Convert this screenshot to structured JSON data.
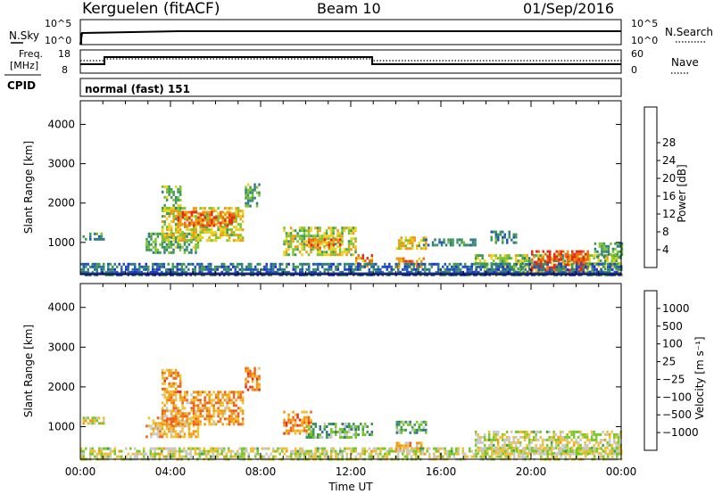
{
  "header": {
    "station": "Kerguelen (fitACF)",
    "beam": "Beam 10",
    "date": "01/Sep/2016"
  },
  "summary_panels": {
    "nsky_label": "N.Sky",
    "nsky_ticks": [
      "10^5",
      "10^0"
    ],
    "nsearch_label": "N.Search",
    "nsearch_ticks": [
      "10^5",
      "10^0"
    ],
    "freq_label_1": "Freq.",
    "freq_label_2": "[MHz]",
    "freq_ticks": [
      "18",
      "8"
    ],
    "nave_label": "Nave",
    "nave_ticks": [
      "60",
      "0"
    ],
    "cpid_label": "CPID",
    "mode_label": "normal (fast) 151"
  },
  "colors": {
    "power": [
      "#2a2ad8",
      "#1f52c0",
      "#2f7b86",
      "#3c9a55",
      "#7cc42a",
      "#e9d21a",
      "#f09a10",
      "#ee6a10",
      "#e82a14"
    ],
    "velocity": [
      "#e82a14",
      "#f06018",
      "#f09a10",
      "#f0c030",
      "#c8c8c8",
      "#78c828",
      "#3c9a55",
      "#2f7b86",
      "#1f52c0"
    ]
  },
  "chart_data": [
    {
      "type": "heatmap",
      "name": "power",
      "xlabel": "Time UT",
      "ylabel": "Slant Range [km]",
      "ylim": [
        180,
        4600
      ],
      "xlim": [
        "00:00",
        "24:00"
      ],
      "y_ticks": [
        "1000",
        "2000",
        "3000",
        "4000"
      ],
      "colorbar_label": "Power [dB]",
      "colorbar_ticks": [
        "4",
        "8",
        "12",
        "16",
        "20",
        "24",
        "28"
      ],
      "echo_regions": [
        {
          "t0": 0.1,
          "t1": 1.0,
          "r0": 1050,
          "r1": 1250,
          "level": 0.3
        },
        {
          "t0": 2.9,
          "t1": 5.2,
          "r0": 750,
          "r1": 1250,
          "level": 0.4
        },
        {
          "t0": 3.6,
          "t1": 7.2,
          "r0": 1050,
          "r1": 1900,
          "level": 0.6
        },
        {
          "t0": 4.3,
          "t1": 6.8,
          "r0": 1400,
          "r1": 1800,
          "level": 0.85
        },
        {
          "t0": 3.6,
          "t1": 4.4,
          "r0": 1900,
          "r1": 2450,
          "level": 0.45
        },
        {
          "t0": 7.3,
          "t1": 7.9,
          "r0": 1900,
          "r1": 2500,
          "level": 0.4
        },
        {
          "t0": 9.0,
          "t1": 12.2,
          "r0": 700,
          "r1": 1400,
          "level": 0.55
        },
        {
          "t0": 10.0,
          "t1": 11.5,
          "r0": 850,
          "r1": 1100,
          "level": 0.75
        },
        {
          "t0": 12.2,
          "t1": 12.9,
          "r0": 400,
          "r1": 700,
          "level": 0.8
        },
        {
          "t0": 14.0,
          "t1": 15.3,
          "r0": 850,
          "r1": 1150,
          "level": 0.6
        },
        {
          "t0": 14.0,
          "t1": 15.2,
          "r0": 380,
          "r1": 620,
          "level": 0.8
        },
        {
          "t0": 15.2,
          "t1": 17.5,
          "r0": 950,
          "r1": 1100,
          "level": 0.3
        },
        {
          "t0": 17.5,
          "t1": 24.0,
          "r0": 200,
          "r1": 700,
          "level": 0.5
        },
        {
          "t0": 20.0,
          "t1": 22.5,
          "r0": 300,
          "r1": 800,
          "level": 0.9
        },
        {
          "t0": 18.2,
          "t1": 19.3,
          "r0": 1000,
          "r1": 1300,
          "level": 0.3
        },
        {
          "t0": 22.8,
          "t1": 24.0,
          "r0": 650,
          "r1": 1000,
          "level": 0.4
        },
        {
          "t0": 0.0,
          "t1": 24.0,
          "r0": 180,
          "r1": 480,
          "level": 0.25
        }
      ]
    },
    {
      "type": "heatmap",
      "name": "velocity",
      "xlabel": "Time UT",
      "ylabel": "Slant Range [km]",
      "ylim": [
        180,
        4600
      ],
      "xlim": [
        "00:00",
        "24:00"
      ],
      "x_ticks": [
        "00:00",
        "04:00",
        "08:00",
        "12:00",
        "16:00",
        "20:00",
        "00:00"
      ],
      "y_ticks": [
        "1000",
        "2000",
        "3000",
        "4000"
      ],
      "colorbar_label": "Velocity [m s⁻¹]",
      "colorbar_ticks": [
        "1000",
        "500",
        "100",
        "25",
        "−25",
        "−100",
        "−500",
        "−1000"
      ],
      "echo_regions": [
        {
          "t0": 0.1,
          "t1": 1.0,
          "r0": 1050,
          "r1": 1250,
          "level": 0.45
        },
        {
          "t0": 2.9,
          "t1": 5.2,
          "r0": 750,
          "r1": 1250,
          "level": 0.35
        },
        {
          "t0": 3.6,
          "t1": 7.2,
          "r0": 1050,
          "r1": 1900,
          "level": 0.3
        },
        {
          "t0": 3.6,
          "t1": 4.4,
          "r0": 1900,
          "r1": 2450,
          "level": 0.25
        },
        {
          "t0": 7.3,
          "t1": 7.9,
          "r0": 1900,
          "r1": 2500,
          "level": 0.2
        },
        {
          "t0": 9.0,
          "t1": 10.2,
          "r0": 800,
          "r1": 1400,
          "level": 0.25
        },
        {
          "t0": 10.0,
          "t1": 12.2,
          "r0": 700,
          "r1": 1100,
          "level": 0.65
        },
        {
          "t0": 12.2,
          "t1": 12.9,
          "r0": 800,
          "r1": 1100,
          "level": 0.7
        },
        {
          "t0": 14.0,
          "t1": 15.3,
          "r0": 850,
          "r1": 1150,
          "level": 0.65
        },
        {
          "t0": 14.0,
          "t1": 15.2,
          "r0": 380,
          "r1": 620,
          "level": 0.35
        },
        {
          "t0": 17.5,
          "t1": 24.0,
          "r0": 350,
          "r1": 900,
          "level": 0.5
        },
        {
          "t0": 0.0,
          "t1": 24.0,
          "r0": 180,
          "r1": 480,
          "level": 0.5
        }
      ]
    }
  ]
}
